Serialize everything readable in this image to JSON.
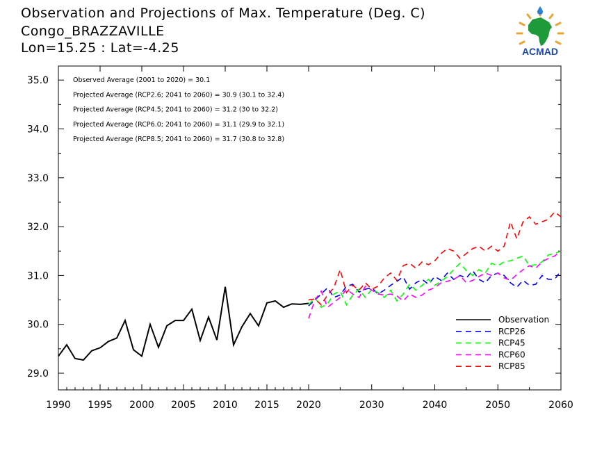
{
  "title_lines": [
    "Observation and Projections of Max. Temperature (Deg. C)",
    "Congo_BRAZZAVILLE",
    "Lon=15.25 : Lat=-4.25"
  ],
  "logo": {
    "text": "ACMAD",
    "colors": {
      "africa": "#1f9a3a",
      "text": "#1f4aa8",
      "rays": "#e8a533",
      "drop": "#2a7fd4"
    }
  },
  "annotations": [
    "Observed Average (2001 to 2020) = 30.1",
    "Projected Average (RCP2.6; 2041 to 2060) = 30.9 (30.1 to 32.4)",
    "Projected Average (RCP4.5; 2041 to 2060) = 31.2 (30 to 32.2)",
    "Projected Average (RCP6.0; 2041 to 2060) = 31.1 (29.9 to 32.1)",
    "Projected Average (RCP8.5; 2041 to 2060) = 31.7 (30.8 to 32.8)"
  ],
  "chart_data": {
    "type": "line",
    "xlim": [
      1990,
      2060
    ],
    "ylim": [
      28.65,
      35.2
    ],
    "x_tick_labels": [
      "1990",
      "1995",
      "2000",
      "2005",
      "2010",
      "2015",
      "2020",
      "2030",
      "2040",
      "2050",
      "2060"
    ],
    "y_tick_labels": [
      "29.0",
      "30.0",
      "31.0",
      "32.0",
      "33.0",
      "34.0",
      "35.0"
    ],
    "y_tick_values": [
      29,
      30,
      31,
      32,
      33,
      34,
      35
    ],
    "legend_position": "bottom-right",
    "series": [
      {
        "name": "Observation",
        "color": "#000000",
        "dashed": false,
        "x": [
          1990,
          1991,
          1992,
          1993,
          1994,
          1995,
          1996,
          1997,
          1998,
          1999,
          2000,
          2001,
          2002,
          2003,
          2004,
          2005,
          2006,
          2007,
          2008,
          2009,
          2010,
          2011,
          2012,
          2013,
          2014,
          2015,
          2016,
          2017,
          2018,
          2019,
          2020
        ],
        "y": [
          29.35,
          29.58,
          29.3,
          29.27,
          29.46,
          29.52,
          29.65,
          29.72,
          30.08,
          29.48,
          29.35,
          30.0,
          29.53,
          29.97,
          30.08,
          30.08,
          30.31,
          29.67,
          30.15,
          29.68,
          30.77,
          29.58,
          29.95,
          30.22,
          29.97,
          30.44,
          30.48,
          30.35,
          30.42,
          30.41,
          30.43
        ]
      },
      {
        "name": "RCP26",
        "color": "#0000ff",
        "dashed": true,
        "x": [
          2020,
          2021,
          2022,
          2023,
          2024,
          2025,
          2026,
          2027,
          2028,
          2029,
          2030,
          2031,
          2032,
          2033,
          2034,
          2035,
          2036,
          2037,
          2038,
          2039,
          2040,
          2041,
          2042,
          2043,
          2044,
          2045,
          2046,
          2047,
          2048,
          2049,
          2050,
          2051,
          2052,
          2053,
          2054,
          2055,
          2056,
          2057,
          2058,
          2059,
          2060
        ],
        "y": [
          30.38,
          30.5,
          30.62,
          30.75,
          30.55,
          30.6,
          30.78,
          30.82,
          30.66,
          30.72,
          30.75,
          30.62,
          30.7,
          30.8,
          30.88,
          30.97,
          30.72,
          30.85,
          30.92,
          30.82,
          30.98,
          30.9,
          31.05,
          30.92,
          31.0,
          30.95,
          31.1,
          30.92,
          30.85,
          31.0,
          31.05,
          31.0,
          30.85,
          30.76,
          30.9,
          30.8,
          30.82,
          31.0,
          30.92,
          30.92,
          31.1
        ]
      },
      {
        "name": "RCP45",
        "color": "#00ff00",
        "dashed": true,
        "x": [
          2020,
          2021,
          2022,
          2023,
          2024,
          2025,
          2026,
          2027,
          2028,
          2029,
          2030,
          2031,
          2032,
          2033,
          2034,
          2035,
          2036,
          2037,
          2038,
          2039,
          2040,
          2041,
          2042,
          2043,
          2044,
          2045,
          2046,
          2047,
          2048,
          2049,
          2050,
          2051,
          2052,
          2053,
          2054,
          2055,
          2056,
          2057,
          2058,
          2059,
          2060
        ],
        "y": [
          30.4,
          30.55,
          30.35,
          30.42,
          30.62,
          30.68,
          30.4,
          30.6,
          30.72,
          30.55,
          30.72,
          30.65,
          30.55,
          30.7,
          30.48,
          30.62,
          30.82,
          30.7,
          30.8,
          30.92,
          30.8,
          30.88,
          30.98,
          31.12,
          31.25,
          31.1,
          31.0,
          31.12,
          31.05,
          31.25,
          31.2,
          31.28,
          31.3,
          31.35,
          31.4,
          31.2,
          31.22,
          31.28,
          31.42,
          31.45,
          31.5
        ]
      },
      {
        "name": "RCP60",
        "color": "#ff00ff",
        "dashed": true,
        "x": [
          2020,
          2021,
          2022,
          2023,
          2024,
          2025,
          2026,
          2027,
          2028,
          2029,
          2030,
          2031,
          2032,
          2033,
          2034,
          2035,
          2036,
          2037,
          2038,
          2039,
          2040,
          2041,
          2042,
          2043,
          2044,
          2045,
          2046,
          2047,
          2048,
          2049,
          2050,
          2051,
          2052,
          2053,
          2054,
          2055,
          2056,
          2057,
          2058,
          2059,
          2060
        ],
        "y": [
          30.12,
          30.5,
          30.68,
          30.35,
          30.45,
          30.55,
          30.72,
          30.62,
          30.55,
          30.78,
          30.7,
          30.62,
          30.6,
          30.62,
          30.58,
          30.48,
          30.62,
          30.55,
          30.6,
          30.7,
          30.75,
          30.85,
          30.88,
          30.92,
          31.0,
          30.85,
          30.9,
          30.98,
          31.05,
          31.0,
          31.05,
          30.95,
          30.9,
          31.02,
          31.12,
          31.2,
          31.15,
          31.28,
          31.35,
          31.4,
          31.5
        ]
      },
      {
        "name": "RCP85",
        "color": "#ff0000",
        "dashed": true,
        "x": [
          2020,
          2021,
          2022,
          2023,
          2024,
          2025,
          2026,
          2027,
          2028,
          2029,
          2030,
          2031,
          2032,
          2033,
          2034,
          2035,
          2036,
          2037,
          2038,
          2039,
          2040,
          2041,
          2042,
          2043,
          2044,
          2045,
          2046,
          2047,
          2048,
          2049,
          2050,
          2051,
          2052,
          2053,
          2054,
          2055,
          2056,
          2057,
          2058,
          2059,
          2060
        ],
        "y": [
          30.5,
          30.52,
          30.4,
          30.6,
          30.75,
          31.12,
          30.65,
          30.8,
          30.7,
          30.85,
          30.72,
          30.78,
          30.95,
          31.05,
          30.9,
          31.2,
          31.25,
          31.15,
          31.28,
          31.22,
          31.3,
          31.45,
          31.55,
          31.5,
          31.35,
          31.45,
          31.55,
          31.6,
          31.5,
          31.6,
          31.5,
          31.6,
          32.1,
          31.75,
          32.1,
          32.2,
          32.05,
          32.1,
          32.15,
          32.3,
          32.2
        ]
      }
    ]
  }
}
